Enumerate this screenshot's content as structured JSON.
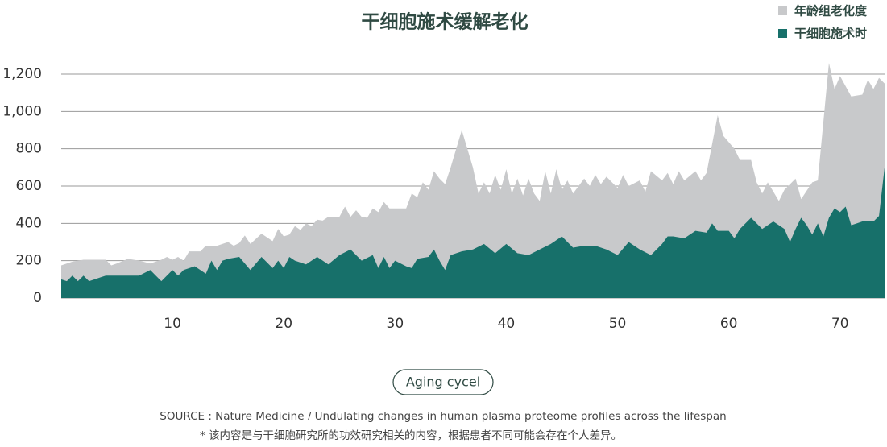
{
  "chart_data": {
    "type": "area",
    "title": "干细胞施术缓解老化",
    "x_label": "Aging cycel",
    "source": "SOURCE : Nature Medicine / Undulating changes in human plasma proteome profiles across the lifespan",
    "note": "* 该内容是与干细胞研究所的功效研究相关的内容，根据患者不同可能会存在个人差异。",
    "legend": "top-right",
    "grid": true,
    "xlim": [
      0,
      74
    ],
    "xticks": [
      10,
      20,
      30,
      40,
      50,
      60,
      70
    ],
    "ylim": [
      0,
      1200
    ],
    "yticks": [
      0,
      200,
      400,
      600,
      800,
      {
        "value": 1000,
        "label": "1,000"
      },
      {
        "value": 1200,
        "label": "1,200"
      }
    ],
    "series": [
      {
        "name": "年龄组老化度",
        "color": "#c8c9cb",
        "x": [
          0,
          1,
          2,
          3,
          4,
          4.5,
          5,
          6,
          7,
          8,
          9,
          9.5,
          10,
          10.5,
          11,
          11.5,
          12.5,
          13,
          14,
          15,
          15.5,
          16,
          16.5,
          17,
          18,
          19,
          19.5,
          20,
          20.5,
          21,
          21.5,
          22,
          22.5,
          23,
          23.5,
          24,
          25,
          25.5,
          26,
          26.5,
          27,
          27.5,
          28,
          28.5,
          29,
          29.5,
          31,
          31.5,
          32,
          32.5,
          33,
          33.5,
          34,
          34.5,
          35,
          36,
          37,
          37.5,
          38,
          38.5,
          39,
          39.5,
          40,
          40.5,
          41,
          41.5,
          42,
          42.5,
          43,
          43.5,
          44,
          44.5,
          45,
          45.5,
          46,
          47,
          47.5,
          48,
          48.5,
          49,
          50,
          50.5,
          51,
          52,
          52.5,
          53,
          54,
          54.5,
          55,
          55.5,
          56,
          57,
          57.5,
          58,
          59,
          59.5,
          60.5,
          61,
          62,
          62.5,
          63,
          63.5,
          64.5,
          65,
          66,
          66.5,
          67.5,
          68,
          69,
          69.5,
          70,
          71,
          72,
          72.5,
          73,
          73.5,
          74
        ],
        "values": [
          175,
          195,
          205,
          205,
          205,
          175,
          185,
          210,
          200,
          185,
          205,
          220,
          205,
          220,
          200,
          250,
          250,
          280,
          280,
          300,
          280,
          295,
          335,
          290,
          345,
          305,
          370,
          330,
          340,
          385,
          365,
          400,
          385,
          420,
          415,
          435,
          435,
          490,
          435,
          470,
          435,
          430,
          480,
          460,
          515,
          480,
          480,
          560,
          540,
          620,
          580,
          680,
          640,
          610,
          700,
          900,
          700,
          560,
          620,
          560,
          660,
          580,
          690,
          560,
          640,
          550,
          640,
          560,
          520,
          680,
          560,
          690,
          580,
          630,
          560,
          640,
          600,
          660,
          610,
          650,
          590,
          660,
          600,
          630,
          570,
          680,
          630,
          670,
          610,
          680,
          630,
          680,
          630,
          670,
          980,
          870,
          800,
          740,
          740,
          620,
          560,
          620,
          520,
          580,
          640,
          530,
          620,
          630,
          1260,
          1120,
          1190,
          1080,
          1090,
          1170,
          1120,
          1180,
          1150
        ]
      },
      {
        "name": "干细胞施术时",
        "color": "#17706a",
        "x": [
          0,
          0.5,
          1,
          1.5,
          2,
          2.5,
          3,
          4,
          5,
          6,
          7,
          8,
          8.5,
          9,
          10,
          10.5,
          11,
          12,
          13,
          13.5,
          14,
          14.5,
          15,
          16,
          17,
          18,
          19,
          19.5,
          20,
          20.5,
          21,
          22,
          23,
          24,
          25,
          26,
          27,
          28,
          28.5,
          29,
          29.5,
          30,
          31,
          31.5,
          32,
          33,
          33.5,
          34,
          34.5,
          35,
          36,
          37,
          38,
          39,
          40,
          41,
          42,
          43,
          44,
          45,
          46,
          47,
          48,
          49,
          50,
          51,
          52,
          53,
          54,
          54.5,
          55,
          56,
          57,
          58,
          58.5,
          59,
          60,
          60.5,
          61,
          62,
          63,
          64,
          65,
          65.5,
          66,
          66.5,
          67,
          67.5,
          68,
          68.5,
          69,
          69.5,
          70,
          70.5,
          71,
          71.5,
          72,
          73,
          73.5,
          74
        ],
        "values": [
          100,
          90,
          120,
          90,
          120,
          90,
          100,
          120,
          120,
          120,
          120,
          150,
          120,
          90,
          150,
          120,
          150,
          170,
          130,
          200,
          150,
          200,
          210,
          220,
          150,
          220,
          160,
          200,
          160,
          220,
          200,
          180,
          220,
          180,
          230,
          260,
          200,
          230,
          160,
          220,
          160,
          200,
          170,
          160,
          210,
          220,
          260,
          200,
          150,
          230,
          250,
          260,
          290,
          240,
          290,
          240,
          230,
          260,
          290,
          330,
          270,
          280,
          280,
          260,
          230,
          300,
          260,
          230,
          290,
          330,
          330,
          320,
          360,
          350,
          400,
          360,
          360,
          320,
          370,
          430,
          370,
          410,
          370,
          300,
          370,
          430,
          390,
          340,
          400,
          330,
          430,
          480,
          460,
          490,
          390,
          400,
          410,
          410,
          440,
          700
        ]
      }
    ]
  }
}
